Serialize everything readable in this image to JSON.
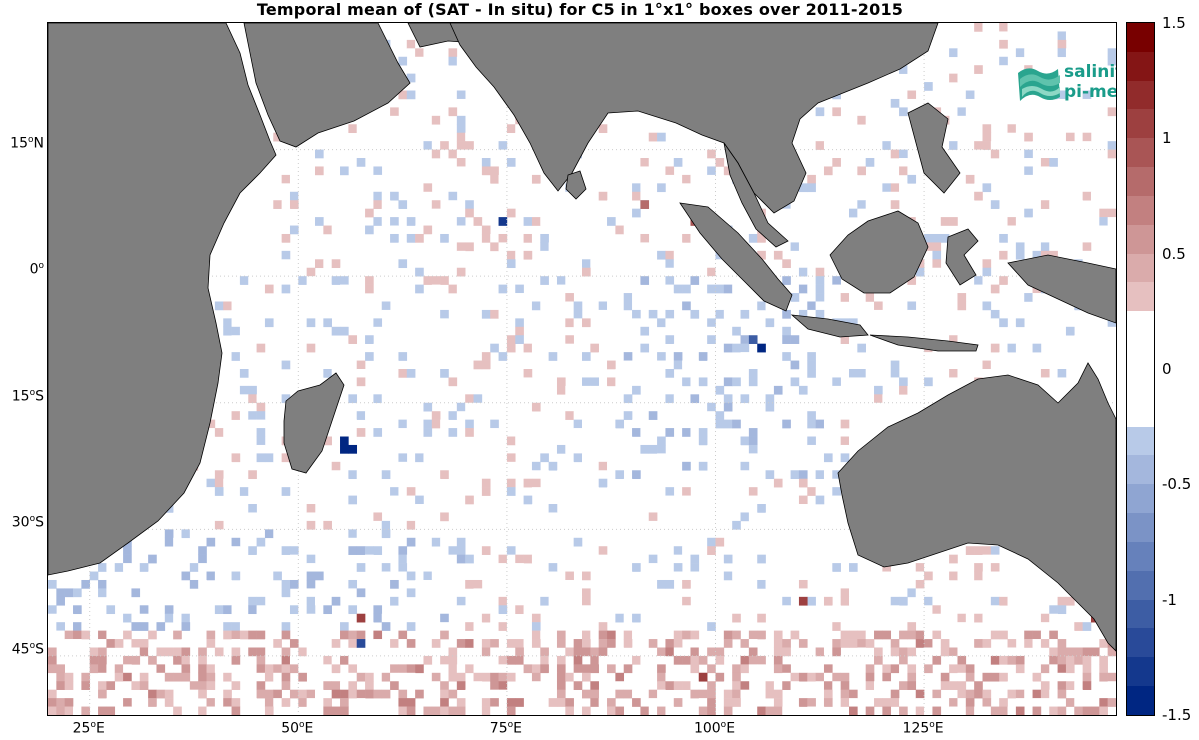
{
  "title": "Temporal mean of (SAT - In situ) for C5 in 1°x1° boxes over 2011-2015",
  "logo": {
    "line1": "salinity",
    "line2": "pi-mep"
  },
  "y_ticks": [
    {
      "deg": "15",
      "hem": "N",
      "lat": 15
    },
    {
      "deg": "0",
      "hem": "",
      "lat": 0
    },
    {
      "deg": "15",
      "hem": "S",
      "lat": -15
    },
    {
      "deg": "30",
      "hem": "S",
      "lat": -30
    },
    {
      "deg": "45",
      "hem": "S",
      "lat": -45
    }
  ],
  "x_ticks": [
    {
      "deg": "25",
      "hem": "E",
      "lon": 25
    },
    {
      "deg": "50",
      "hem": "E",
      "lon": 50
    },
    {
      "deg": "75",
      "hem": "E",
      "lon": 75
    },
    {
      "deg": "100",
      "hem": "E",
      "lon": 100
    },
    {
      "deg": "125",
      "hem": "E",
      "lon": 125
    }
  ],
  "colorbar": {
    "min": -1.5,
    "max": 1.5,
    "steps": 24,
    "labels": [
      "1.5",
      "1",
      "0.5",
      "0",
      "-0.5",
      "-1",
      "-1.5"
    ],
    "label_values": [
      1.5,
      1,
      0.5,
      0,
      -0.5,
      -1,
      -1.5
    ]
  },
  "map": {
    "lon_range": [
      20,
      148
    ],
    "lat_range": [
      -52,
      30
    ]
  },
  "colors": {
    "land": "#7f7f7f",
    "positive": "#d7191c",
    "negative": "#1f5fd6",
    "zero": "#ffffff"
  }
}
